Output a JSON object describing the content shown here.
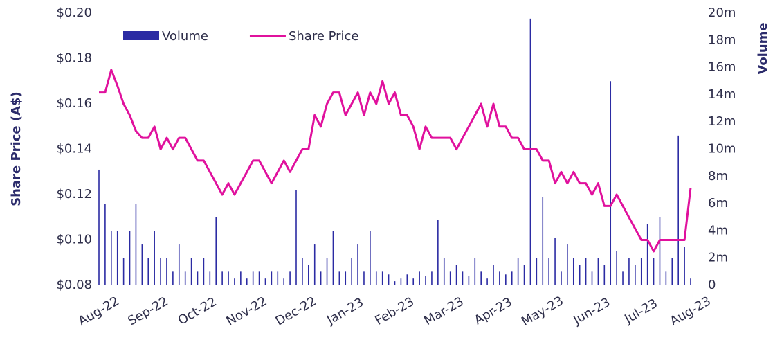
{
  "chart_data": {
    "type": "bar-line",
    "y_label": "Share Price (A$)",
    "y2_label": "Volume",
    "categories": [
      "Aug-22",
      null,
      null,
      null,
      null,
      null,
      null,
      null,
      "Sep-22",
      null,
      null,
      null,
      null,
      null,
      null,
      null,
      "Oct-22",
      null,
      null,
      null,
      null,
      null,
      null,
      null,
      "Nov-22",
      null,
      null,
      null,
      null,
      null,
      null,
      null,
      "Dec-22",
      null,
      null,
      null,
      null,
      null,
      null,
      null,
      "Jan-23",
      null,
      null,
      null,
      null,
      null,
      null,
      null,
      "Feb-23",
      null,
      null,
      null,
      null,
      null,
      null,
      null,
      "Mar-23",
      null,
      null,
      null,
      null,
      null,
      null,
      null,
      "Apr-23",
      null,
      null,
      null,
      null,
      null,
      null,
      null,
      "May-23",
      null,
      null,
      null,
      null,
      null,
      null,
      null,
      "Jun-23",
      null,
      null,
      null,
      null,
      null,
      null,
      null,
      "Jul-23",
      null,
      null,
      null,
      null,
      null,
      null,
      null,
      "Aug-23"
    ],
    "series": [
      {
        "name": "Volume",
        "color": "#2b2ba3",
        "axis": "y2",
        "kind": "bar",
        "values": [
          8.5,
          6,
          4,
          4,
          2,
          4,
          6,
          3,
          2,
          4,
          2,
          2,
          1,
          3,
          1,
          2,
          1,
          2,
          1,
          5,
          1,
          1,
          0.5,
          1,
          0.5,
          1,
          1,
          0.5,
          1,
          1,
          0.5,
          1,
          7,
          2,
          1.5,
          3,
          1,
          2,
          4,
          1,
          1,
          2,
          3,
          1,
          4,
          1,
          1,
          0.8,
          0.3,
          0.5,
          0.8,
          0.5,
          1,
          0.7,
          1,
          4.8,
          2,
          1,
          1.5,
          1,
          0.7,
          2,
          1,
          0.5,
          1.5,
          1,
          0.8,
          1,
          2,
          1.5,
          19.6,
          2,
          6.5,
          2,
          3.5,
          1,
          3,
          2,
          1.5,
          2,
          1,
          2,
          1.5,
          15,
          2.5,
          1,
          2,
          1.5,
          2,
          4.5,
          2,
          5,
          1,
          2,
          11,
          2.8,
          0.5
        ]
      },
      {
        "name": "Share Price",
        "color": "#e0119d",
        "kind": "line",
        "values": [
          0.165,
          0.165,
          0.175,
          0.168,
          0.16,
          0.155,
          0.148,
          0.145,
          0.145,
          0.15,
          0.14,
          0.145,
          0.14,
          0.145,
          0.145,
          0.14,
          0.135,
          0.135,
          0.13,
          0.125,
          0.12,
          0.125,
          0.12,
          0.125,
          0.13,
          0.135,
          0.135,
          0.13,
          0.125,
          0.13,
          0.135,
          0.13,
          0.135,
          0.14,
          0.14,
          0.155,
          0.15,
          0.16,
          0.165,
          0.165,
          0.155,
          0.16,
          0.165,
          0.155,
          0.165,
          0.16,
          0.17,
          0.16,
          0.165,
          0.155,
          0.155,
          0.15,
          0.14,
          0.15,
          0.145,
          0.145,
          0.145,
          0.145,
          0.14,
          0.145,
          0.15,
          0.155,
          0.16,
          0.15,
          0.16,
          0.15,
          0.15,
          0.145,
          0.145,
          0.14,
          0.14,
          0.14,
          0.135,
          0.135,
          0.125,
          0.13,
          0.125,
          0.13,
          0.125,
          0.125,
          0.12,
          0.125,
          0.115,
          0.115,
          0.12,
          0.115,
          0.11,
          0.105,
          0.1,
          0.1,
          0.095,
          0.1,
          0.1,
          0.1,
          0.1,
          0.1,
          0.123
        ]
      }
    ],
    "ylim": [
      0.08,
      0.2
    ],
    "yticks": [
      {
        "value": 0.08,
        "label": "$0.08"
      },
      {
        "value": 0.1,
        "label": "$0.10"
      },
      {
        "value": 0.12,
        "label": "$0.12"
      },
      {
        "value": 0.14,
        "label": "$0.14"
      },
      {
        "value": 0.16,
        "label": "$0.16"
      },
      {
        "value": 0.18,
        "label": "$0.18"
      },
      {
        "value": 0.2,
        "label": "$0.20"
      }
    ],
    "y2lim": [
      0,
      20
    ],
    "y2ticks": [
      0,
      {
        "value": 2,
        "label": "2m"
      },
      {
        "value": 4,
        "label": "4m"
      },
      {
        "value": 6,
        "label": "6m"
      },
      {
        "value": 8,
        "label": "8m"
      },
      {
        "value": 10,
        "label": "10m"
      },
      {
        "value": 12,
        "label": "12m"
      },
      {
        "value": 14,
        "label": "14m"
      },
      {
        "value": 16,
        "label": "16m"
      },
      {
        "value": 18,
        "label": "18m"
      },
      {
        "value": 20,
        "label": "20m"
      }
    ],
    "legend": "top-left"
  }
}
